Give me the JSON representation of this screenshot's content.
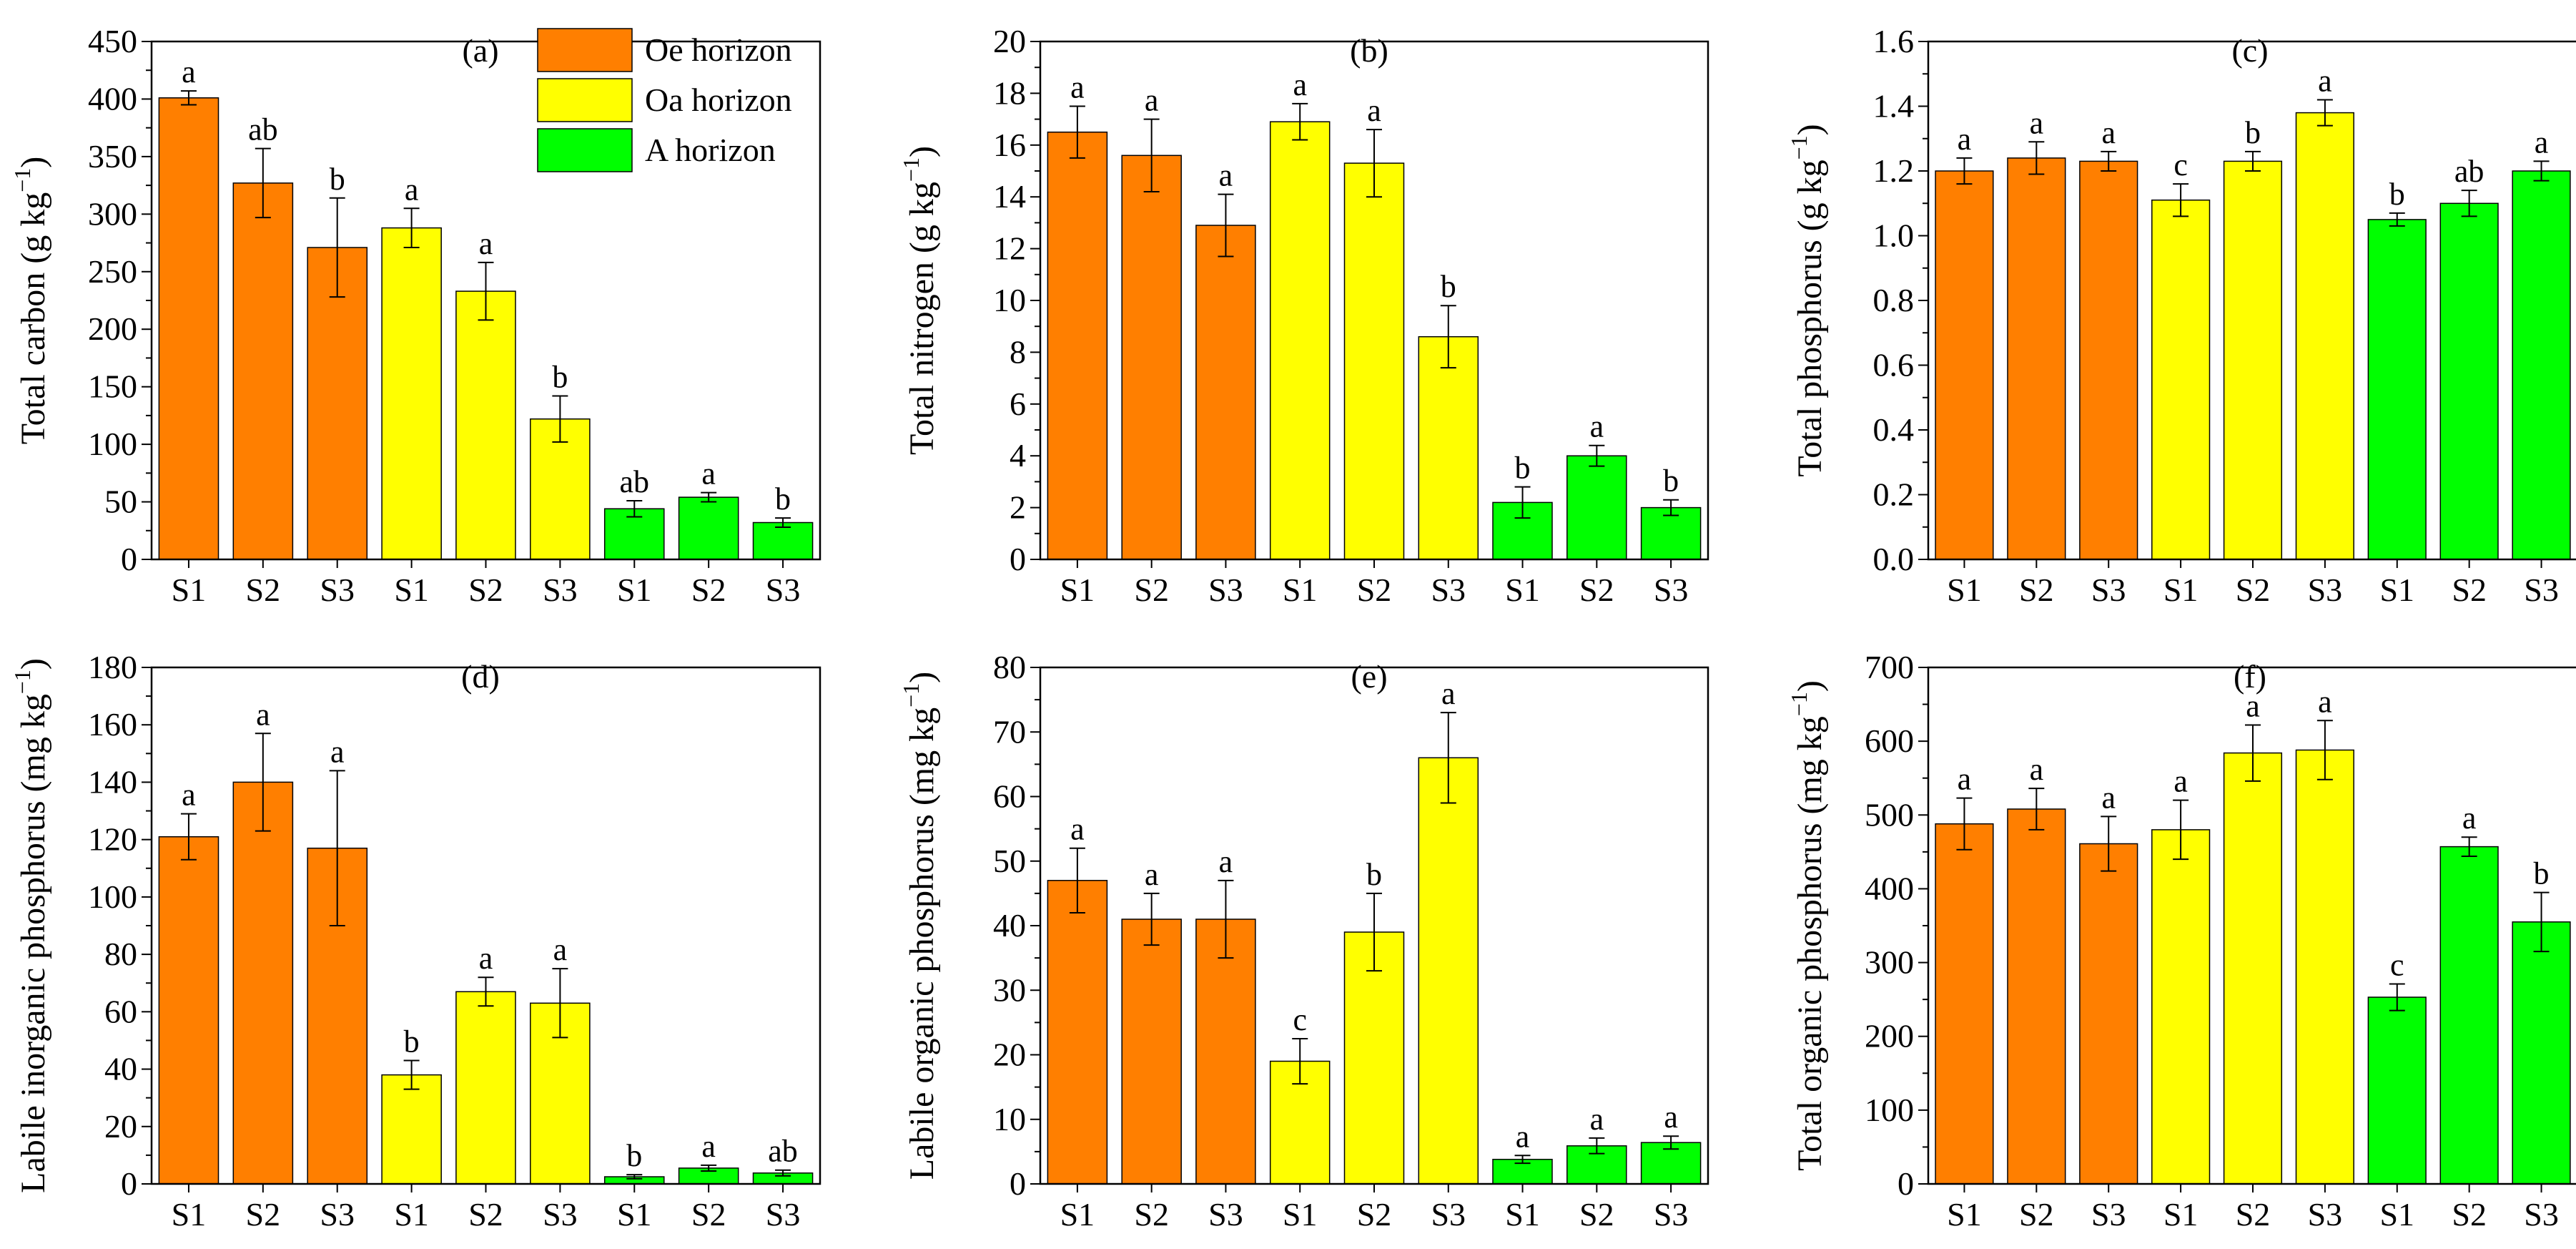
{
  "colors": {
    "oe": "#ff7f00",
    "oa": "#ffff00",
    "a": "#00ff00",
    "edge": "#000000"
  },
  "legend": {
    "position": "top-right of panel (a)",
    "items": [
      {
        "label": "Oe horizon",
        "color": "#ff7f00"
      },
      {
        "label": "Oa horizon",
        "color": "#ffff00"
      },
      {
        "label": "A horizon",
        "color": "#00ff00"
      }
    ]
  },
  "chart_data": [
    {
      "type": "bar",
      "panel": "(a)",
      "ylabel": "Total carbon (g kg",
      "ylabel_sup": "−1",
      "ylabel_end": ")",
      "ylim": [
        0,
        450
      ],
      "yticks": [
        0,
        50,
        100,
        150,
        200,
        250,
        300,
        350,
        400,
        450
      ],
      "ytick_decimals": 0,
      "categories": [
        "S1",
        "S2",
        "S3",
        "S1",
        "S2",
        "S3",
        "S1",
        "S2",
        "S3"
      ],
      "groups": [
        "oe",
        "oe",
        "oe",
        "oa",
        "oa",
        "oa",
        "a",
        "a",
        "a"
      ],
      "values": [
        401,
        327,
        271,
        288,
        233,
        122,
        44,
        54,
        32
      ],
      "errors": [
        6,
        30,
        43,
        17,
        25,
        20,
        7,
        4,
        4
      ],
      "letters": [
        "a",
        "ab",
        "b",
        "a",
        "a",
        "b",
        "ab",
        "a",
        "b"
      ]
    },
    {
      "type": "bar",
      "panel": "(b)",
      "ylabel": "Total nitrogen (g kg",
      "ylabel_sup": "−1",
      "ylabel_end": ")",
      "ylim": [
        0,
        20
      ],
      "yticks": [
        0,
        2,
        4,
        6,
        8,
        10,
        12,
        14,
        16,
        18,
        20
      ],
      "ytick_decimals": 0,
      "categories": [
        "S1",
        "S2",
        "S3",
        "S1",
        "S2",
        "S3",
        "S1",
        "S2",
        "S3"
      ],
      "groups": [
        "oe",
        "oe",
        "oe",
        "oa",
        "oa",
        "oa",
        "a",
        "a",
        "a"
      ],
      "values": [
        16.5,
        15.6,
        12.9,
        16.9,
        15.3,
        8.6,
        2.2,
        4.0,
        2.0
      ],
      "errors": [
        1.0,
        1.4,
        1.2,
        0.7,
        1.3,
        1.2,
        0.6,
        0.4,
        0.3
      ],
      "letters": [
        "a",
        "a",
        "a",
        "a",
        "a",
        "b",
        "b",
        "a",
        "b"
      ]
    },
    {
      "type": "bar",
      "panel": "(c)",
      "ylabel": "Total phosphorus (g kg",
      "ylabel_sup": "−1",
      "ylabel_end": ")",
      "ylim": [
        0,
        1.6
      ],
      "yticks": [
        0,
        0.2,
        0.4,
        0.6,
        0.8,
        1.0,
        1.2,
        1.4,
        1.6
      ],
      "ytick_decimals": 1,
      "categories": [
        "S1",
        "S2",
        "S3",
        "S1",
        "S2",
        "S3",
        "S1",
        "S2",
        "S3"
      ],
      "groups": [
        "oe",
        "oe",
        "oe",
        "oa",
        "oa",
        "oa",
        "a",
        "a",
        "a"
      ],
      "values": [
        1.2,
        1.24,
        1.23,
        1.11,
        1.23,
        1.38,
        1.05,
        1.1,
        1.2
      ],
      "errors": [
        0.04,
        0.05,
        0.03,
        0.05,
        0.03,
        0.04,
        0.02,
        0.04,
        0.03
      ],
      "letters": [
        "a",
        "a",
        "a",
        "c",
        "b",
        "a",
        "b",
        "ab",
        "a"
      ]
    },
    {
      "type": "bar",
      "panel": "(d)",
      "ylabel": "Labile inorganic phosphorus (mg kg",
      "ylabel_sup": "−1",
      "ylabel_end": ")",
      "ylim": [
        0,
        180
      ],
      "yticks": [
        0,
        20,
        40,
        60,
        80,
        100,
        120,
        140,
        160,
        180
      ],
      "ytick_decimals": 0,
      "categories": [
        "S1",
        "S2",
        "S3",
        "S1",
        "S2",
        "S3",
        "S1",
        "S2",
        "S3"
      ],
      "groups": [
        "oe",
        "oe",
        "oe",
        "oa",
        "oa",
        "oa",
        "a",
        "a",
        "a"
      ],
      "values": [
        121,
        140,
        117,
        38,
        67,
        63,
        2.5,
        5.5,
        3.8
      ],
      "errors": [
        8,
        17,
        27,
        5,
        5,
        12,
        0.7,
        1.0,
        1.0
      ],
      "letters": [
        "a",
        "a",
        "a",
        "b",
        "a",
        "a",
        "b",
        "a",
        "ab"
      ]
    },
    {
      "type": "bar",
      "panel": "(e)",
      "ylabel": "Labile organic phosphorus (mg kg",
      "ylabel_sup": "−1",
      "ylabel_end": ")",
      "ylim": [
        0,
        80
      ],
      "yticks": [
        0,
        10,
        20,
        30,
        40,
        50,
        60,
        70,
        80
      ],
      "ytick_decimals": 0,
      "categories": [
        "S1",
        "S2",
        "S3",
        "S1",
        "S2",
        "S3",
        "S1",
        "S2",
        "S3"
      ],
      "groups": [
        "oe",
        "oe",
        "oe",
        "oa",
        "oa",
        "oa",
        "a",
        "a",
        "a"
      ],
      "values": [
        47,
        41,
        41,
        19,
        39,
        66,
        3.8,
        5.9,
        6.4
      ],
      "errors": [
        5,
        4,
        6,
        3.5,
        6,
        7,
        0.6,
        1.2,
        1.0
      ],
      "letters": [
        "a",
        "a",
        "a",
        "c",
        "b",
        "a",
        "a",
        "a",
        "a"
      ]
    },
    {
      "type": "bar",
      "panel": "(f)",
      "ylabel": "Total organic phosphorus (mg kg",
      "ylabel_sup": "−1",
      "ylabel_end": ")",
      "ylim": [
        0,
        700
      ],
      "yticks": [
        0,
        100,
        200,
        300,
        400,
        500,
        600,
        700
      ],
      "ytick_decimals": 0,
      "categories": [
        "S1",
        "S2",
        "S3",
        "S1",
        "S2",
        "S3",
        "S1",
        "S2",
        "S3"
      ],
      "groups": [
        "oe",
        "oe",
        "oe",
        "oa",
        "oa",
        "oa",
        "a",
        "a",
        "a"
      ],
      "values": [
        488,
        508,
        461,
        480,
        584,
        588,
        253,
        457,
        355
      ],
      "errors": [
        35,
        28,
        37,
        40,
        38,
        40,
        18,
        13,
        40
      ],
      "letters": [
        "a",
        "a",
        "a",
        "a",
        "a",
        "a",
        "c",
        "a",
        "b"
      ]
    }
  ]
}
